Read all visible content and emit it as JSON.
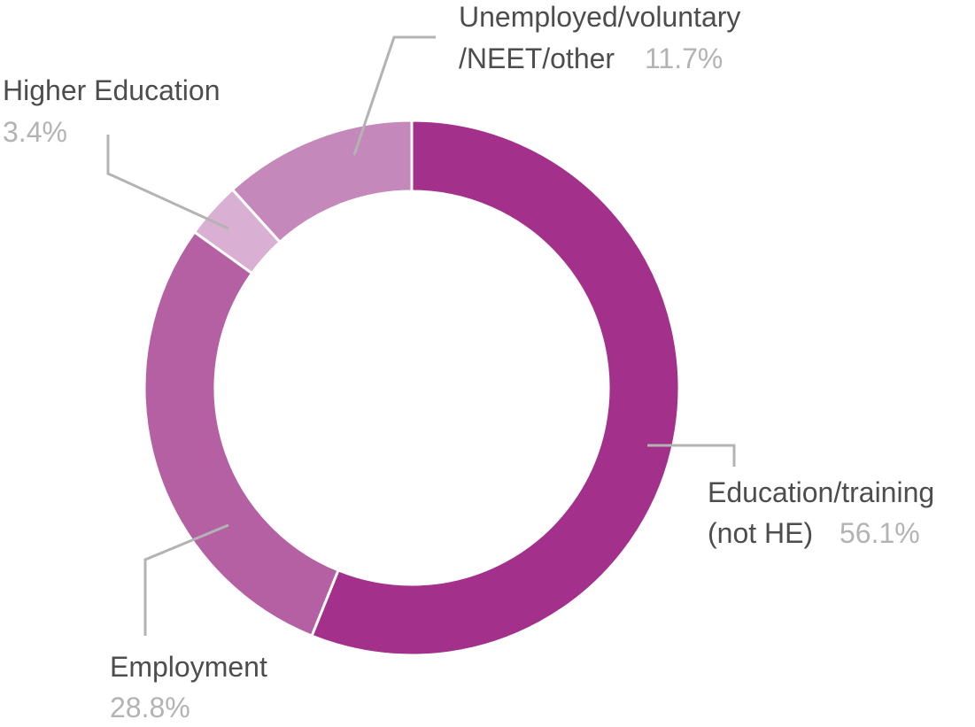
{
  "chart_data": {
    "type": "pie",
    "variant": "donut",
    "slices": [
      {
        "label": [
          "Education/training",
          "(not HE)"
        ],
        "value": 56.1,
        "display": "56.1%",
        "color": "#a3308a"
      },
      {
        "label": [
          "Employment"
        ],
        "value": 28.8,
        "display": "28.8%",
        "color": "#b460a2"
      },
      {
        "label": [
          "Higher Education"
        ],
        "value": 3.4,
        "display": "3.4%",
        "color": "#d9b0d3"
      },
      {
        "label": [
          "Unemployed/voluntary",
          "/NEET/other"
        ],
        "value": 11.7,
        "display": "11.7%",
        "color": "#c588bb"
      }
    ],
    "legend": "none",
    "start_angle_deg": 0,
    "direction": "clockwise"
  }
}
